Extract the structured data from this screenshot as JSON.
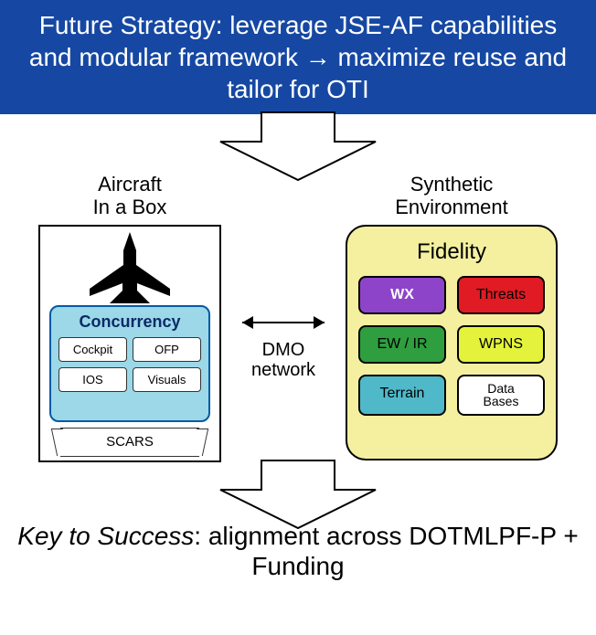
{
  "banner": {
    "text": "Future Strategy: leverage JSE-AF capabilities and modular framework → maximize reuse and tailor for OTI",
    "bg": "#1648a3",
    "fg": "#ffffff"
  },
  "arrow_stroke": "#000000",
  "arrow_fill": "#ffffff",
  "left": {
    "label_l1": "Aircraft",
    "label_l2": "In a Box",
    "concurrency": {
      "title": "Concurrency",
      "bg": "#9cd8e8",
      "border": "#035aa6",
      "title_color": "#0a2a66",
      "items": [
        "Cockpit",
        "OFP",
        "IOS",
        "Visuals"
      ]
    },
    "scars": "SCARS",
    "jet_color": "#000000"
  },
  "mid": {
    "label_l1": "DMO",
    "label_l2": "network"
  },
  "right": {
    "label_l1": "Synthetic",
    "label_l2": "Environment",
    "box_bg": "#f4f0a0",
    "title": "Fidelity",
    "tiles": [
      {
        "label": "WX",
        "bg": "#8e44c9",
        "fg": "#ffffff",
        "bold": true
      },
      {
        "label": "Threats",
        "bg": "#e01b24",
        "fg": "#000000"
      },
      {
        "label": "EW / IR",
        "bg": "#2e9e3f",
        "fg": "#000000"
      },
      {
        "label": "WPNS",
        "bg": "#e4f23b",
        "fg": "#000000"
      },
      {
        "label": "Terrain",
        "bg": "#4fb8c9",
        "fg": "#000000"
      },
      {
        "label": "Data Bases",
        "bg": "#ffffff",
        "fg": "#000000",
        "small": true
      }
    ]
  },
  "footer": {
    "italic": "Key to Success",
    "rest": ": alignment across DOTMLPF-P + Funding"
  }
}
